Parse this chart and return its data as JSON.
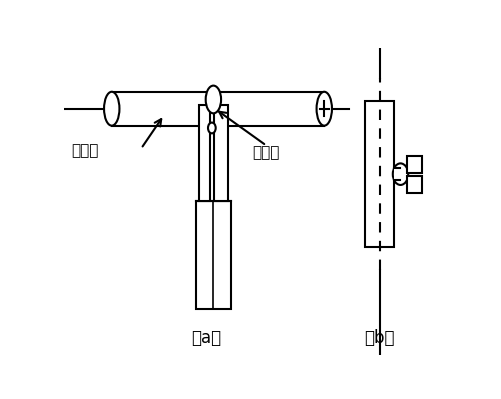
{
  "label_a": "（a）",
  "label_b": "（b）",
  "label_heng": "横向管",
  "label_zong": "纵向管",
  "bg_color": "#ffffff",
  "line_color": "#000000",
  "figsize": [
    5.02,
    3.99
  ],
  "dpi": 100
}
